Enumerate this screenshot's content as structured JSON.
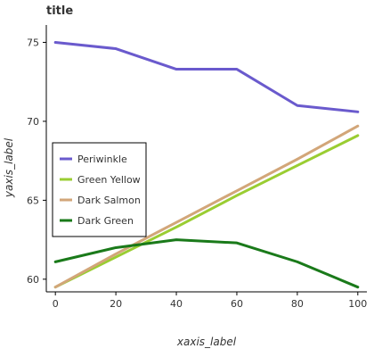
{
  "chart_data": {
    "type": "line",
    "title": "title",
    "xlabel": "xaxis_label",
    "ylabel": "yaxis_label",
    "x_ticks": [
      0,
      20,
      40,
      60,
      80,
      100
    ],
    "y_ticks": [
      60,
      65,
      70,
      75
    ],
    "xlim": [
      -3,
      103
    ],
    "ylim": [
      59.2,
      76.1
    ],
    "grid": false,
    "legend_position": "left",
    "series": [
      {
        "name": "Periwinkle",
        "color": "#6a5acd",
        "x": [
          0,
          20,
          40,
          60,
          80,
          100
        ],
        "y": [
          75.0,
          74.6,
          73.3,
          73.3,
          71.0,
          70.6
        ]
      },
      {
        "name": "Green Yellow",
        "color": "#9acd32",
        "x": [
          0,
          20,
          40,
          60,
          80,
          100
        ],
        "y": [
          59.5,
          61.4,
          63.3,
          65.3,
          67.2,
          69.1
        ]
      },
      {
        "name": "Dark Salmon",
        "color": "#d2a679",
        "x": [
          0,
          20,
          40,
          60,
          80,
          100
        ],
        "y": [
          59.5,
          61.6,
          63.6,
          65.6,
          67.6,
          69.7
        ]
      },
      {
        "name": "Dark Green",
        "color": "#1a7a1a",
        "x": [
          0,
          20,
          40,
          60,
          80,
          100
        ],
        "y": [
          61.1,
          62.0,
          62.5,
          62.3,
          61.1,
          59.5
        ]
      }
    ]
  }
}
